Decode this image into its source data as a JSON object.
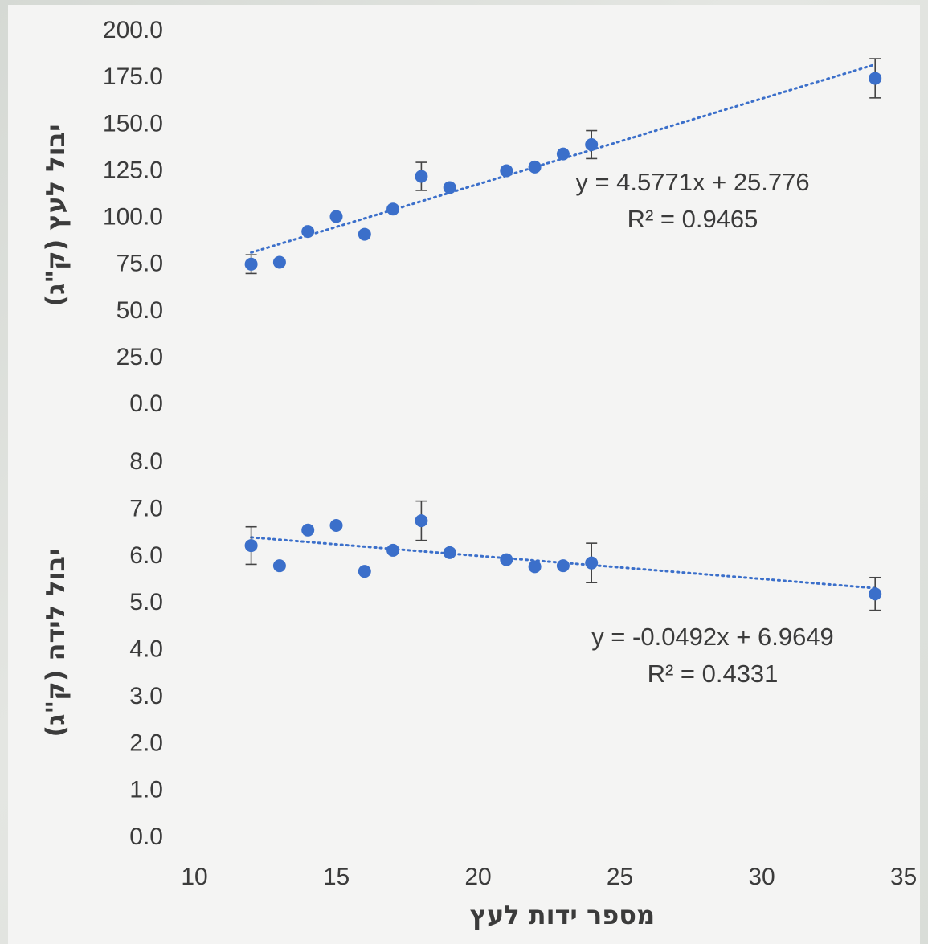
{
  "colors": {
    "marker": "#3b6fca",
    "trend": "#3b6fca",
    "errorbar": "#444444",
    "text": "#3b3b3b"
  },
  "chart_data": [
    {
      "type": "scatter",
      "title": "",
      "xlabel": "מספר ידות לעץ",
      "ylabel": "יבול לעץ (ק\"ג)",
      "xlim": [
        10,
        35
      ],
      "ylim": [
        0,
        200
      ],
      "yticks": [
        "0.0",
        "25.0",
        "50.0",
        "75.0",
        "100.0",
        "125.0",
        "150.0",
        "175.0",
        "200.0"
      ],
      "points": [
        {
          "x": 12,
          "y": 74.5,
          "err": 5
        },
        {
          "x": 13,
          "y": 75.5
        },
        {
          "x": 14,
          "y": 92
        },
        {
          "x": 15,
          "y": 100
        },
        {
          "x": 16,
          "y": 90.5
        },
        {
          "x": 17,
          "y": 104
        },
        {
          "x": 18,
          "y": 121.5,
          "err": 7.5
        },
        {
          "x": 19,
          "y": 115.5
        },
        {
          "x": 21,
          "y": 124.5
        },
        {
          "x": 22,
          "y": 126.5
        },
        {
          "x": 23,
          "y": 133.5
        },
        {
          "x": 24,
          "y": 138.5,
          "err": 7.5
        },
        {
          "x": 34,
          "y": 174,
          "err": 10.5
        }
      ],
      "trendline": {
        "slope": 4.5771,
        "intercept": 25.776,
        "x_range": [
          12,
          34
        ]
      },
      "equation": "y = 4.5771x + 25.776",
      "r2": "R² = 0.9465"
    },
    {
      "type": "scatter",
      "title": "",
      "xlabel": "מספר ידות לעץ",
      "ylabel": "יבול לידה (ק\"ג)",
      "xlim": [
        10,
        35
      ],
      "ylim": [
        0,
        8
      ],
      "yticks": [
        "0.0",
        "1.0",
        "2.0",
        "3.0",
        "4.0",
        "5.0",
        "6.0",
        "7.0",
        "8.0"
      ],
      "xticks": [
        "10",
        "15",
        "20",
        "25",
        "30",
        "35"
      ],
      "points": [
        {
          "x": 12,
          "y": 6.2,
          "err": 0.4
        },
        {
          "x": 13,
          "y": 5.77
        },
        {
          "x": 14,
          "y": 6.53
        },
        {
          "x": 15,
          "y": 6.63
        },
        {
          "x": 16,
          "y": 5.65
        },
        {
          "x": 17,
          "y": 6.1
        },
        {
          "x": 18,
          "y": 6.73,
          "err": 0.42
        },
        {
          "x": 19,
          "y": 6.05
        },
        {
          "x": 21,
          "y": 5.9
        },
        {
          "x": 22,
          "y": 5.75
        },
        {
          "x": 23,
          "y": 5.77
        },
        {
          "x": 24,
          "y": 5.83,
          "err": 0.42
        },
        {
          "x": 34,
          "y": 5.17,
          "err": 0.35
        }
      ],
      "trendline": {
        "slope": -0.0492,
        "intercept": 6.9649,
        "x_range": [
          12,
          34
        ]
      },
      "equation": "y = -0.0492x + 6.9649",
      "r2": "R² = 0.4331"
    }
  ]
}
